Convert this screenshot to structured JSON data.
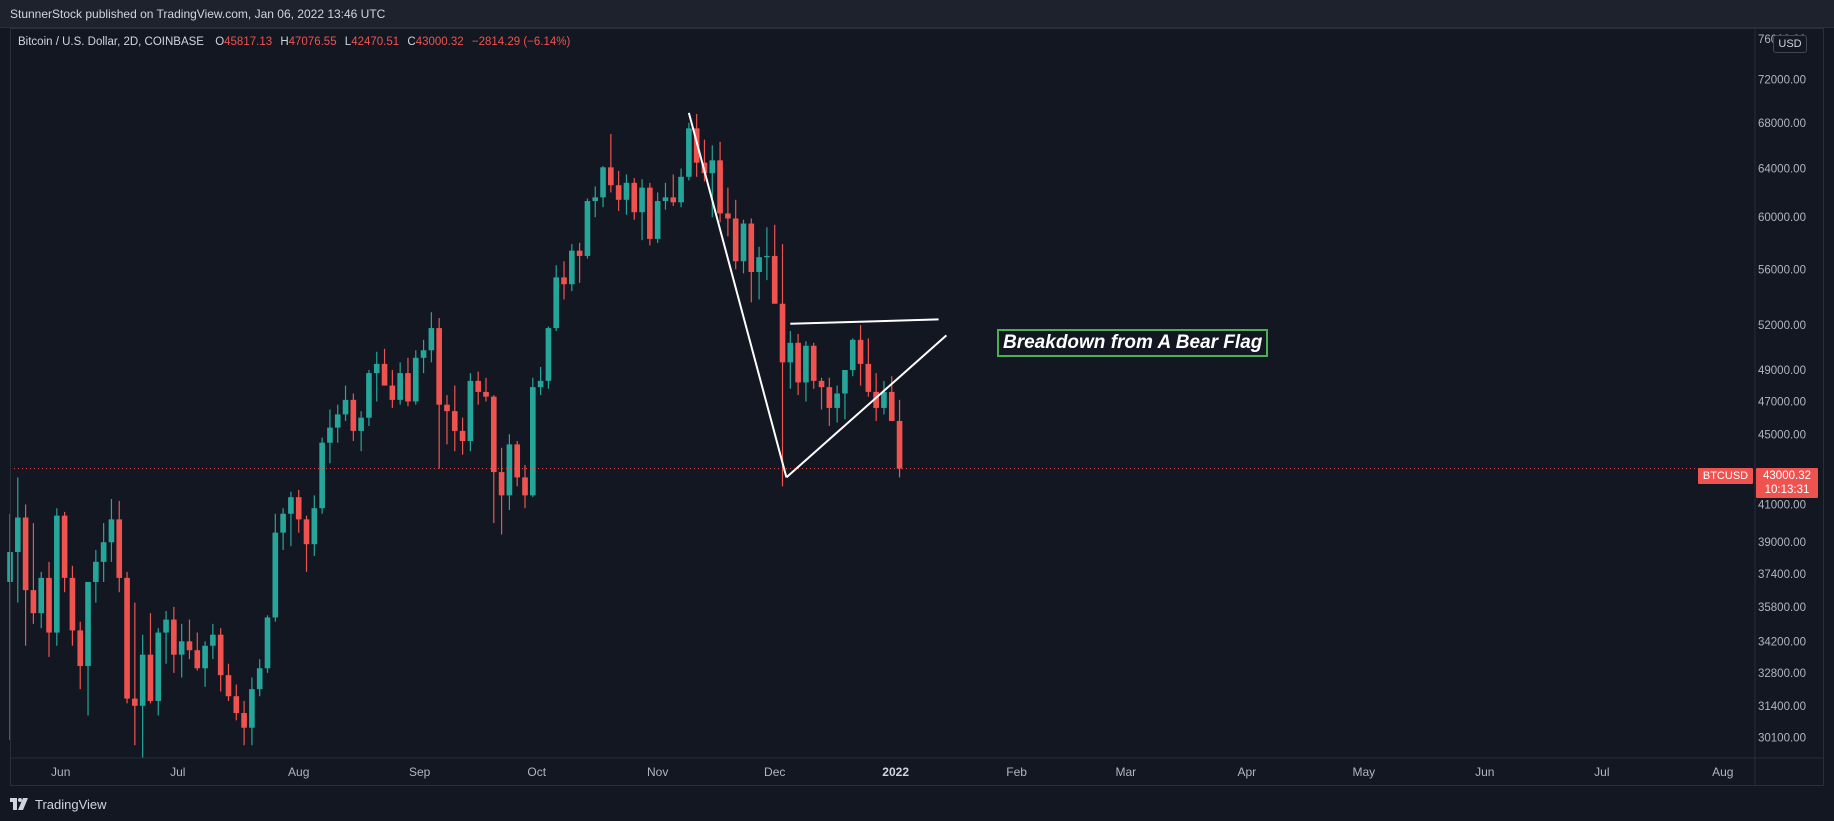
{
  "header": {
    "published_text": "StunnerStock published on TradingView.com, Jan 06, 2022 13:46 UTC"
  },
  "legend": {
    "symbol_text": "Bitcoin / U.S. Dollar, 2D, COINBASE",
    "open_label": "O",
    "open_value": "45817.13",
    "high_label": "H",
    "high_value": "47076.55",
    "low_label": "L",
    "low_value": "42470.51",
    "close_label": "C",
    "close_value": "43000.32",
    "change_text": "−2814.29 (−6.14%)"
  },
  "currency_label": "USD",
  "last_price": {
    "symbol": "BTCUSD",
    "price": "43000.32",
    "countdown": "10:13:31",
    "color": "#ef5350"
  },
  "annotation": {
    "text": "Breakdown from A Bear Flag",
    "border_color": "#4caf50"
  },
  "footer": {
    "brand": "TradingView"
  },
  "colors": {
    "up": "#26a69a",
    "down": "#ef5350",
    "background": "#131722",
    "drawing": "#ffffff"
  },
  "chart_data": {
    "type": "candlestick",
    "y_scale": "log",
    "ylim": [
      29300,
      77000
    ],
    "xlim": [
      "2021-05-19",
      "2022-08-09"
    ],
    "y_ticks": [
      "76000.00",
      "72000.00",
      "68000.00",
      "64000.00",
      "60000.00",
      "56000.00",
      "52000.00",
      "49000.00",
      "47000.00",
      "45000.00",
      "41000.00",
      "39000.00",
      "37400.00",
      "35800.00",
      "34200.00",
      "32800.00",
      "31400.00",
      "30100.00"
    ],
    "x_ticks": [
      {
        "label": "Jun",
        "date": "2021-06-01"
      },
      {
        "label": "Jul",
        "date": "2021-07-01"
      },
      {
        "label": "Aug",
        "date": "2021-08-01"
      },
      {
        "label": "Sep",
        "date": "2021-09-01"
      },
      {
        "label": "Oct",
        "date": "2021-10-01"
      },
      {
        "label": "Nov",
        "date": "2021-11-01"
      },
      {
        "label": "Dec",
        "date": "2021-12-01"
      },
      {
        "label": "2022",
        "date": "2022-01-01"
      },
      {
        "label": "Feb",
        "date": "2022-02-01"
      },
      {
        "label": "Mar",
        "date": "2022-03-01"
      },
      {
        "label": "Apr",
        "date": "2022-04-01"
      },
      {
        "label": "May",
        "date": "2022-05-01"
      },
      {
        "label": "Jun",
        "date": "2022-06-01"
      },
      {
        "label": "Jul",
        "date": "2022-07-01"
      },
      {
        "label": "Aug",
        "date": "2022-08-01"
      }
    ],
    "candles": [
      [
        "2021-05-19",
        37000,
        40500,
        30000,
        38500
      ],
      [
        "2021-05-21",
        38500,
        42500,
        36000,
        40300
      ],
      [
        "2021-05-23",
        40300,
        41000,
        34000,
        36600
      ],
      [
        "2021-05-25",
        36600,
        40000,
        35000,
        35500
      ],
      [
        "2021-05-27",
        35500,
        37500,
        34800,
        37200
      ],
      [
        "2021-05-29",
        37200,
        38000,
        33500,
        34600
      ],
      [
        "2021-05-31",
        34600,
        40800,
        34000,
        40400
      ],
      [
        "2021-06-02",
        40400,
        40600,
        36500,
        37200
      ],
      [
        "2021-06-04",
        37200,
        37800,
        34000,
        34700
      ],
      [
        "2021-06-06",
        34700,
        35100,
        32100,
        33100
      ],
      [
        "2021-06-08",
        33100,
        37000,
        31000,
        37000
      ],
      [
        "2021-06-10",
        37000,
        38600,
        36000,
        38000
      ],
      [
        "2021-06-12",
        38000,
        40000,
        37000,
        39000
      ],
      [
        "2021-06-14",
        39000,
        41300,
        38000,
        40200
      ],
      [
        "2021-06-16",
        40200,
        41200,
        36500,
        37200
      ],
      [
        "2021-06-18",
        37200,
        37500,
        31500,
        31700
      ],
      [
        "2021-06-20",
        31700,
        36000,
        29800,
        31400
      ],
      [
        "2021-06-22",
        31400,
        34500,
        29300,
        33600
      ],
      [
        "2021-06-24",
        33600,
        35500,
        31500,
        31600
      ],
      [
        "2021-06-26",
        31600,
        34800,
        31000,
        34600
      ],
      [
        "2021-06-28",
        34600,
        35600,
        33200,
        35200
      ],
      [
        "2021-06-30",
        35200,
        35800,
        32800,
        33600
      ],
      [
        "2021-07-02",
        33600,
        35000,
        32600,
        34200
      ],
      [
        "2021-07-04",
        34200,
        35200,
        33400,
        33800
      ],
      [
        "2021-07-06",
        33800,
        34600,
        32900,
        33000
      ],
      [
        "2021-07-08",
        33000,
        34200,
        32200,
        34000
      ],
      [
        "2021-07-10",
        34000,
        35000,
        33400,
        34500
      ],
      [
        "2021-07-12",
        34500,
        34800,
        32000,
        32700
      ],
      [
        "2021-07-14",
        32700,
        33200,
        31600,
        31800
      ],
      [
        "2021-07-16",
        31800,
        32300,
        30800,
        31100
      ],
      [
        "2021-07-18",
        31100,
        31600,
        29800,
        30500
      ],
      [
        "2021-07-20",
        30500,
        32600,
        29800,
        32100
      ],
      [
        "2021-07-22",
        32100,
        33400,
        31800,
        33000
      ],
      [
        "2021-07-24",
        33000,
        35400,
        32800,
        35300
      ],
      [
        "2021-07-26",
        35300,
        40500,
        35100,
        39500
      ],
      [
        "2021-07-28",
        39500,
        40800,
        38600,
        40500
      ],
      [
        "2021-07-30",
        40500,
        41700,
        38800,
        41400
      ],
      [
        "2021-08-01",
        41400,
        41800,
        39500,
        40200
      ],
      [
        "2021-08-03",
        40200,
        40400,
        37500,
        38900
      ],
      [
        "2021-08-05",
        38900,
        41500,
        38300,
        40800
      ],
      [
        "2021-08-07",
        40800,
        44800,
        40500,
        44500
      ],
      [
        "2021-08-09",
        44500,
        46500,
        43300,
        45400
      ],
      [
        "2021-08-11",
        45400,
        46800,
        44500,
        46200
      ],
      [
        "2021-08-13",
        46200,
        48000,
        45800,
        47100
      ],
      [
        "2021-08-15",
        47100,
        47500,
        44600,
        45200
      ],
      [
        "2021-08-17",
        45200,
        46400,
        44000,
        46000
      ],
      [
        "2021-08-19",
        46000,
        49000,
        45500,
        48800
      ],
      [
        "2021-08-21",
        48800,
        50200,
        47000,
        49400
      ],
      [
        "2021-08-23",
        49400,
        50400,
        48000,
        48000
      ],
      [
        "2021-08-25",
        48000,
        49000,
        46600,
        47100
      ],
      [
        "2021-08-27",
        47100,
        49500,
        46800,
        48800
      ],
      [
        "2021-08-29",
        48800,
        49800,
        46700,
        47000
      ],
      [
        "2021-08-31",
        47000,
        50300,
        46800,
        49800
      ],
      [
        "2021-09-02",
        49800,
        51000,
        48800,
        50300
      ],
      [
        "2021-09-04",
        50300,
        52900,
        49500,
        51800
      ],
      [
        "2021-09-06",
        51800,
        52500,
        43000,
        46800
      ],
      [
        "2021-09-08",
        46800,
        47400,
        44400,
        46400
      ],
      [
        "2021-09-10",
        46400,
        48000,
        44000,
        45200
      ],
      [
        "2021-09-12",
        45200,
        46000,
        43800,
        44600
      ],
      [
        "2021-09-14",
        44600,
        48800,
        44000,
        48300
      ],
      [
        "2021-09-16",
        48300,
        48900,
        46800,
        47600
      ],
      [
        "2021-09-18",
        47600,
        48500,
        47000,
        47300
      ],
      [
        "2021-09-20",
        47300,
        47400,
        40000,
        42800
      ],
      [
        "2021-09-22",
        42800,
        44200,
        39400,
        41500
      ],
      [
        "2021-09-24",
        41500,
        45000,
        40700,
        44400
      ],
      [
        "2021-09-26",
        44400,
        44600,
        42000,
        42500
      ],
      [
        "2021-09-28",
        42500,
        43200,
        40800,
        41500
      ],
      [
        "2021-09-30",
        41500,
        48500,
        41400,
        47900
      ],
      [
        "2021-10-02",
        47900,
        49200,
        47400,
        48300
      ],
      [
        "2021-10-04",
        48300,
        51900,
        47800,
        51800
      ],
      [
        "2021-10-06",
        51800,
        56300,
        51600,
        55400
      ],
      [
        "2021-10-08",
        55400,
        56600,
        53800,
        54900
      ],
      [
        "2021-10-10",
        54900,
        57900,
        54400,
        57400
      ],
      [
        "2021-10-12",
        57400,
        58000,
        55000,
        57000
      ],
      [
        "2021-10-14",
        57000,
        61500,
        56800,
        61300
      ],
      [
        "2021-10-16",
        61300,
        62500,
        60000,
        61600
      ],
      [
        "2021-10-18",
        61600,
        64200,
        60800,
        64100
      ],
      [
        "2021-10-20",
        64100,
        67000,
        62000,
        62600
      ],
      [
        "2021-10-22",
        62600,
        63800,
        60500,
        61400
      ],
      [
        "2021-10-24",
        61400,
        63500,
        60200,
        62800
      ],
      [
        "2021-10-26",
        62800,
        63200,
        59800,
        60400
      ],
      [
        "2021-10-28",
        60400,
        63100,
        58200,
        62400
      ],
      [
        "2021-10-30",
        62400,
        62800,
        57800,
        58300
      ],
      [
        "2021-11-01",
        58300,
        62000,
        58000,
        61300
      ],
      [
        "2021-11-03",
        61300,
        62800,
        60600,
        61600
      ],
      [
        "2021-11-05",
        61600,
        63500,
        60900,
        61200
      ],
      [
        "2021-11-07",
        61200,
        64000,
        60800,
        63300
      ],
      [
        "2021-11-09",
        63300,
        68000,
        63000,
        67500
      ],
      [
        "2021-11-11",
        67500,
        68800,
        63300,
        64500
      ],
      [
        "2021-11-13",
        64500,
        66500,
        62900,
        63600
      ],
      [
        "2021-11-15",
        63600,
        66000,
        60000,
        64700
      ],
      [
        "2021-11-17",
        64700,
        66300,
        59600,
        60300
      ],
      [
        "2021-11-19",
        60300,
        62400,
        58500,
        59900
      ],
      [
        "2021-11-21",
        59900,
        61400,
        56000,
        56600
      ],
      [
        "2021-11-23",
        56600,
        59800,
        55700,
        59500
      ],
      [
        "2021-11-25",
        59500,
        59900,
        53600,
        55800
      ],
      [
        "2021-11-27",
        55800,
        57700,
        53800,
        56900
      ],
      [
        "2021-11-29",
        56900,
        59200,
        55200,
        57000
      ],
      [
        "2021-12-01",
        57000,
        59400,
        53500,
        53500
      ],
      [
        "2021-12-03",
        53500,
        57900,
        42000,
        49500
      ],
      [
        "2021-12-05",
        49500,
        51600,
        47800,
        50800
      ],
      [
        "2021-12-07",
        50800,
        51400,
        47400,
        48200
      ],
      [
        "2021-12-09",
        48200,
        50900,
        47000,
        50600
      ],
      [
        "2021-12-11",
        50600,
        50800,
        47800,
        48300
      ],
      [
        "2021-12-13",
        48300,
        48500,
        46500,
        47900
      ],
      [
        "2021-12-15",
        47900,
        48500,
        45500,
        46600
      ],
      [
        "2021-12-17",
        46600,
        48000,
        45700,
        47500
      ],
      [
        "2021-12-19",
        47500,
        49000,
        45900,
        49000
      ],
      [
        "2021-12-21",
        49000,
        51100,
        48600,
        51000
      ],
      [
        "2021-12-23",
        51000,
        52000,
        48000,
        49400
      ],
      [
        "2021-12-25",
        49400,
        51100,
        47300,
        47600
      ],
      [
        "2021-12-27",
        47600,
        48800,
        45800,
        46600
      ],
      [
        "2021-12-29",
        46600,
        48300,
        46200,
        47600
      ],
      [
        "2021-12-31",
        47600,
        48600,
        46000,
        45800
      ],
      [
        "2022-01-02",
        45800,
        47100,
        42500,
        43000
      ]
    ]
  }
}
